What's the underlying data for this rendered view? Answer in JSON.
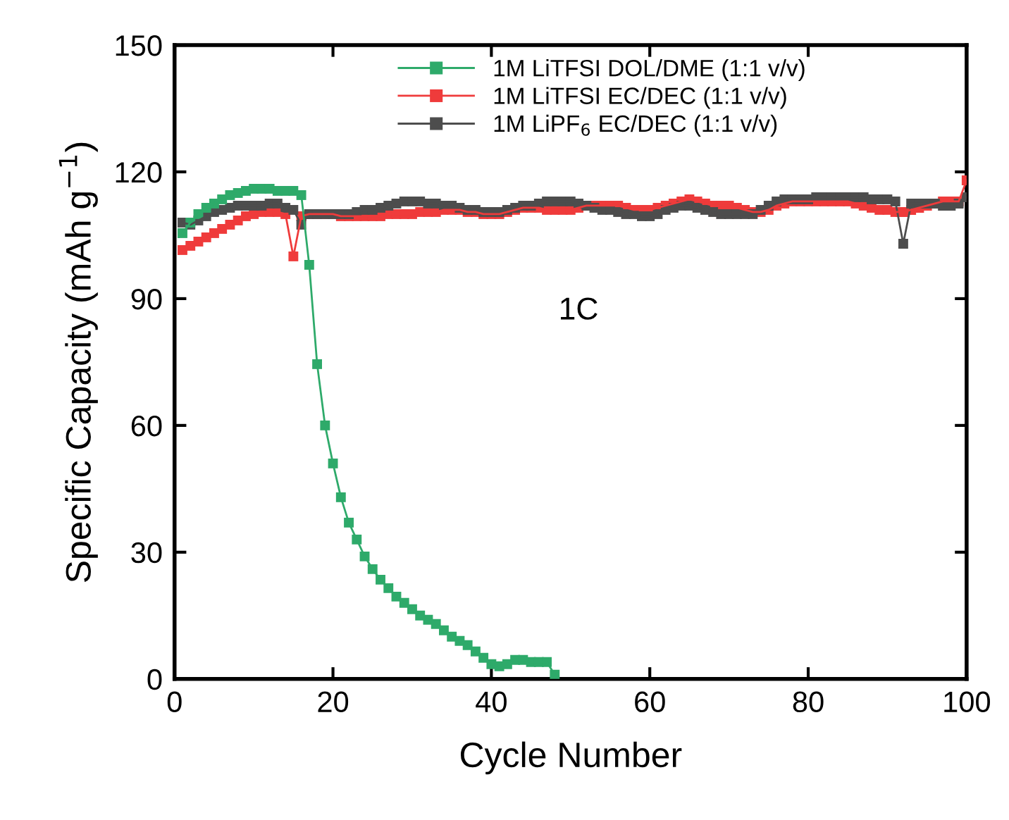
{
  "chart_data": {
    "type": "line",
    "xlabel": "Cycle Number",
    "ylabel": "Specific Capacity (mAh g$^{−1}$)",
    "xlim": [
      0,
      100
    ],
    "ylim": [
      0,
      150
    ],
    "xticks": [
      0,
      20,
      40,
      60,
      80,
      100
    ],
    "yticks": [
      0,
      30,
      60,
      90,
      120,
      150
    ],
    "marker": "square",
    "line_style": "solid",
    "grid": false,
    "legend": "top",
    "annotations": [
      "1C"
    ],
    "series": [
      {
        "name": "1M LiTFSI DOL/DME (1:1 v/v)",
        "color": "#2eaa6a",
        "x": [
          1,
          2,
          3,
          4,
          5,
          6,
          7,
          8,
          9,
          10,
          11,
          12,
          13,
          14,
          15,
          16,
          17,
          18,
          19,
          20,
          21,
          22,
          23,
          24,
          25,
          26,
          27,
          28,
          29,
          30,
          31,
          32,
          33,
          34,
          35,
          36,
          37,
          38,
          39,
          40,
          41,
          42,
          43,
          44,
          45,
          46,
          47,
          48
        ],
        "values": [
          105.5,
          108,
          110,
          111.5,
          112.5,
          113.5,
          114.5,
          115,
          115.5,
          116,
          116,
          116,
          115.5,
          115.5,
          115.5,
          114.5,
          98,
          74.5,
          60,
          51,
          43,
          37,
          33,
          29,
          26,
          23.5,
          21.5,
          19.5,
          18,
          16.5,
          15,
          14,
          13,
          11.5,
          10,
          9,
          8,
          6.5,
          5,
          3.5,
          3,
          3.5,
          4.5,
          4.5,
          4,
          4,
          4,
          1
        ]
      },
      {
        "name": "1M LiTFSI EC/DEC (1:1 v/v)",
        "color": "#ef3b3b",
        "x": [
          1,
          2,
          3,
          4,
          5,
          6,
          7,
          8,
          9,
          10,
          11,
          12,
          13,
          14,
          15,
          16,
          17,
          18,
          19,
          20,
          21,
          22,
          23,
          24,
          25,
          26,
          27,
          28,
          29,
          30,
          31,
          32,
          33,
          34,
          35,
          36,
          37,
          38,
          39,
          40,
          41,
          42,
          43,
          44,
          45,
          46,
          47,
          48,
          49,
          50,
          51,
          52,
          53,
          54,
          55,
          56,
          57,
          58,
          59,
          60,
          61,
          62,
          63,
          64,
          65,
          66,
          67,
          68,
          69,
          70,
          71,
          72,
          73,
          74,
          75,
          76,
          77,
          78,
          79,
          80,
          81,
          82,
          83,
          84,
          85,
          86,
          87,
          88,
          89,
          90,
          91,
          92,
          93,
          94,
          95,
          96,
          97,
          98,
          99,
          100
        ],
        "values": [
          101.5,
          102.5,
          103.5,
          104.5,
          105.5,
          106.5,
          107.5,
          108.5,
          109.5,
          110,
          110.5,
          110.5,
          110.5,
          110,
          100,
          109.5,
          110,
          110,
          110,
          110,
          109.5,
          109.5,
          109.5,
          109.5,
          109.5,
          109.5,
          110,
          110,
          110,
          110,
          110.5,
          110.5,
          110.5,
          111,
          111,
          111,
          110.5,
          110.5,
          110,
          110,
          110,
          110.5,
          111,
          111.5,
          111.5,
          111.5,
          111,
          111,
          111,
          111,
          111.5,
          112,
          112,
          112,
          112,
          112,
          111.5,
          111,
          111,
          111,
          111.5,
          112,
          112.5,
          113,
          113.5,
          113,
          112.5,
          112,
          112,
          112,
          111.5,
          111,
          110.5,
          110.5,
          111,
          112,
          112.5,
          113,
          113,
          113,
          113,
          113,
          113,
          113,
          113,
          112.5,
          112,
          111.5,
          111,
          111,
          110.5,
          110.5,
          111,
          111.5,
          112,
          112.5,
          113,
          113,
          113,
          118
        ]
      },
      {
        "name": "1M LiPF$_{6}$ EC/DEC (1:1 v/v)",
        "color": "#4d4d4d",
        "x": [
          1,
          2,
          3,
          4,
          5,
          6,
          7,
          8,
          9,
          10,
          11,
          12,
          13,
          14,
          15,
          16,
          17,
          18,
          19,
          20,
          21,
          22,
          23,
          24,
          25,
          26,
          27,
          28,
          29,
          30,
          31,
          32,
          33,
          34,
          35,
          36,
          37,
          38,
          39,
          40,
          41,
          42,
          43,
          44,
          45,
          46,
          47,
          48,
          49,
          50,
          51,
          52,
          53,
          54,
          55,
          56,
          57,
          58,
          59,
          60,
          61,
          62,
          63,
          64,
          65,
          66,
          67,
          68,
          69,
          70,
          71,
          72,
          73,
          74,
          75,
          76,
          77,
          78,
          79,
          80,
          81,
          82,
          83,
          84,
          85,
          86,
          87,
          88,
          89,
          90,
          91,
          92,
          93,
          94,
          95,
          96,
          97,
          98,
          99,
          100
        ],
        "values": [
          108,
          107.5,
          108.5,
          109.5,
          110.5,
          111,
          111.5,
          112,
          112,
          112,
          112,
          112.5,
          112.5,
          111.5,
          111,
          107.5,
          110,
          110,
          110,
          110,
          110,
          110,
          110.5,
          111,
          111,
          111.5,
          112,
          112.5,
          113,
          113,
          113,
          112.5,
          112.5,
          112,
          112,
          111.5,
          111,
          111,
          110.5,
          110.5,
          110.5,
          111,
          111.5,
          112,
          112,
          112.5,
          113,
          113,
          113,
          113,
          112.5,
          112,
          111.5,
          111,
          111,
          110.5,
          110,
          110,
          109.5,
          109.5,
          110,
          111,
          111.5,
          112,
          112,
          111.5,
          111,
          110.5,
          110,
          110,
          110,
          110,
          110,
          111,
          112,
          113,
          113.5,
          113.5,
          113.5,
          113.5,
          114,
          114,
          114,
          114,
          114,
          114,
          114,
          113.5,
          113.5,
          113.5,
          113,
          103,
          112.5,
          112.5,
          112.5,
          112.5,
          112,
          112,
          112.5,
          114
        ]
      }
    ]
  }
}
